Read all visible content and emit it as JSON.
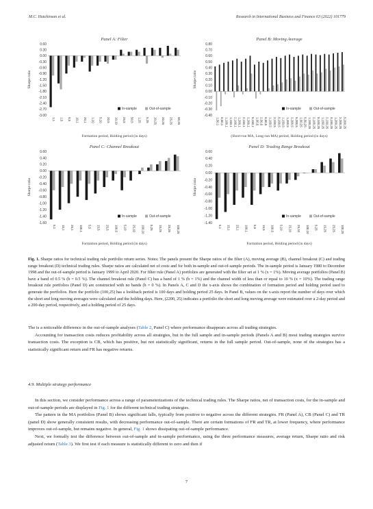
{
  "header": {
    "left": "M.C. Hutchinson et al.",
    "right": "Research in International Business and Finance 63 (2022) 101779"
  },
  "panels": [
    {
      "id": "A",
      "title": "Panel A: Filter",
      "ylabel": "Sharpe ratio",
      "xlabel": "Formation period, Holding period (in days)",
      "legend": [
        "In-sample",
        "Out-of-sample"
      ],
      "yticks": [
        "0.60",
        "0.30",
        "0.00",
        "-0.30",
        "-0.60",
        "-0.90",
        "-1.20",
        "-1.50",
        "-1.80",
        "-2.10",
        "-2.40",
        "-2.70",
        "-3.00"
      ],
      "ylim": [
        -3.0,
        0.6
      ],
      "xticks": [
        "1,1",
        "1,5",
        "5,5",
        "10,1",
        "20,1",
        "1,10",
        "5,10",
        "20,5",
        "10,10",
        "25,5",
        "50,5",
        "1,25",
        "5,25",
        "10,25",
        "20,25",
        "25,25",
        "50,25"
      ]
    },
    {
      "id": "B",
      "title": "Panel B: Moving Average",
      "ylabel": "Sharpe ratio",
      "xlabel": "(Short-run MA, Long-run MA) period, Holding period (in days)",
      "legend": [
        "In-sample",
        "Out-of-sample"
      ],
      "yticks": [
        "0.80",
        "0.70",
        "0.60",
        "0.50",
        "0.40",
        "0.30",
        "0.20",
        "0.10",
        "0.00",
        "-0.10",
        "-0.20",
        "-0.30",
        "-0.40"
      ],
      "ylim": [
        -0.4,
        0.8
      ],
      "xticks": [
        "1,50,1",
        "5,50,1",
        "1,100,1",
        "1,150,1",
        "2,100,1",
        "1,200,1",
        "2,150,1",
        "2,200,1",
        "5,150,1",
        "1,50,5",
        "2,50,5",
        "5,50,5",
        "1,100,5",
        "2,100,5",
        "5,100,5",
        "1,150,5",
        "1,200,5",
        "2,200,5",
        "5,200,5",
        "1,50,25",
        "5,50,25",
        "1,100,25",
        "2,100,25",
        "5,100,25",
        "1,150,25",
        "2,150,25",
        "5,150,25",
        "1,200,25",
        "2,200,25",
        "5,200,25"
      ]
    },
    {
      "id": "C",
      "title": "Panel C: Channel Breakout",
      "ylabel": "Sharpe ratio",
      "xlabel": "Formation period, Holding period (in days)",
      "legend": [
        "In-sample",
        "Out-of-sample"
      ],
      "yticks": [
        "0.60",
        "0.40",
        "0.20",
        "0.00",
        "-0.20",
        "-0.40",
        "-0.60",
        "-0.80",
        "-1.00",
        "-1.20",
        "-1.40",
        "-1.60"
      ],
      "ylim": [
        -1.6,
        0.6
      ],
      "xticks": [
        "5,1",
        "15,1",
        "25,1",
        "100,1",
        "5,5",
        "15,5",
        "25,5",
        "100,5",
        "5,10",
        "25,10",
        "100,10",
        "5,25",
        "15,25",
        "25,25",
        "100,25"
      ]
    },
    {
      "id": "D",
      "title": "Panel D: Trading Range Breakout",
      "ylabel": "Sharpe ratio",
      "xlabel": "Formation period, Holding period (in days)",
      "legend": [
        "In-sample",
        "Out-of-sample"
      ],
      "yticks": [
        "0.60",
        "0.40",
        "0.20",
        "0.00",
        "-0.20",
        "-0.40",
        "-0.60",
        "-0.80",
        "-1.00",
        "-1.20",
        "-1.40"
      ],
      "ylim": [
        -1.4,
        0.6
      ],
      "xticks": [
        "5,1",
        "15,1",
        "25,1",
        "100,1",
        "5,5",
        "15,5",
        "100,5",
        "5,10",
        "15,10",
        "25,10",
        "100,10",
        "5,25",
        "15,25",
        "25,25",
        "100,25"
      ]
    }
  ],
  "chart_data": [
    {
      "type": "bar",
      "title": "Panel A: Filter",
      "xlabel": "Formation period, Holding period (in days)",
      "ylabel": "Sharpe ratio",
      "ylim": [
        -3.0,
        0.6
      ],
      "categories": [
        "1,1",
        "1,5",
        "5,5",
        "10,1",
        "20,1",
        "1,10",
        "5,10",
        "20,5",
        "10,10",
        "25,5",
        "50,5",
        "1,25",
        "5,25",
        "10,25",
        "20,25",
        "25,25",
        "50,25"
      ],
      "series": [
        {
          "name": "In-sample",
          "values": [
            -2.6,
            -1.4,
            -0.9,
            -0.6,
            -0.3,
            -0.8,
            -0.5,
            -0.3,
            -0.2,
            0.3,
            0.2,
            0.3,
            0.4,
            0.4,
            0.4,
            0.5,
            0.4
          ]
        },
        {
          "name": "Out-of-sample",
          "values": [
            -1.0,
            -1.7,
            -0.5,
            -0.3,
            -0.1,
            -0.5,
            -0.3,
            -0.4,
            -0.2,
            0.1,
            0.2,
            0.2,
            -0.4,
            0.3,
            -0.1,
            0.1,
            0.3
          ]
        }
      ],
      "legend": "bottom-right"
    },
    {
      "type": "bar",
      "title": "Panel B: Moving Average",
      "xlabel": "(Short-run MA, Long-run MA) period, Holding period (in days)",
      "ylabel": "Sharpe ratio",
      "ylim": [
        -0.4,
        0.8
      ],
      "categories": [
        "1,50,1",
        "5,50,1",
        "1,100,1",
        "1,150,1",
        "2,100,1",
        "1,200,1",
        "2,150,1",
        "2,200,1",
        "5,150,1",
        "1,50,5",
        "2,50,5",
        "5,50,5",
        "1,100,5",
        "2,100,5",
        "5,100,5",
        "1,150,5",
        "1,200,5",
        "2,200,5",
        "5,200,5",
        "1,50,25",
        "5,50,25",
        "1,100,25",
        "2,100,25",
        "5,100,25",
        "1,150,25",
        "2,150,25",
        "5,150,25",
        "1,200,25",
        "2,200,25",
        "5,200,25"
      ],
      "series": [
        {
          "name": "In-sample",
          "values": [
            0.42,
            0.45,
            0.48,
            0.5,
            0.52,
            0.55,
            0.5,
            0.55,
            0.6,
            0.45,
            0.5,
            0.48,
            0.52,
            0.55,
            0.58,
            0.56,
            0.6,
            0.62,
            0.58,
            0.6,
            0.62,
            0.6,
            0.63,
            0.62,
            0.61,
            0.63,
            0.62,
            0.64,
            0.65,
            0.66
          ]
        },
        {
          "name": "Out-of-sample",
          "values": [
            -0.32,
            -0.25,
            -0.05,
            0.0,
            -0.1,
            0.1,
            -0.05,
            0.05,
            0.3,
            -0.12,
            -0.05,
            0.0,
            0.05,
            0.1,
            0.12,
            0.15,
            0.2,
            0.22,
            0.18,
            0.25,
            0.3,
            0.28,
            0.35,
            0.3,
            0.32,
            0.38,
            0.35,
            0.4,
            0.42,
            0.45
          ]
        }
      ],
      "legend": "bottom-right"
    },
    {
      "type": "bar",
      "title": "Panel C: Channel Breakout",
      "xlabel": "Formation period, Holding period (in days)",
      "ylabel": "Sharpe ratio",
      "ylim": [
        -1.6,
        0.6
      ],
      "categories": [
        "5,1",
        "15,1",
        "25,1",
        "100,1",
        "5,5",
        "15,5",
        "25,5",
        "100,5",
        "5,10",
        "25,10",
        "100,10",
        "5,25",
        "15,25",
        "25,25",
        "100,25"
      ],
      "series": [
        {
          "name": "In-sample",
          "values": [
            -1.5,
            -1.2,
            -1.0,
            -0.8,
            -0.9,
            -0.7,
            -0.5,
            -0.3,
            -0.6,
            -0.3,
            -0.1,
            0.1,
            0.2,
            0.3,
            0.5
          ]
        },
        {
          "name": "Out-of-sample",
          "values": [
            -0.6,
            -0.5,
            -0.4,
            -0.3,
            -0.4,
            -0.3,
            -0.2,
            -0.1,
            -0.2,
            0.0,
            0.1,
            0.2,
            0.3,
            0.4,
            0.45
          ]
        }
      ],
      "legend": "bottom-right"
    },
    {
      "type": "bar",
      "title": "Panel D: Trading Range Breakout",
      "xlabel": "Formation period, Holding period (in days)",
      "ylabel": "Sharpe ratio",
      "ylim": [
        -1.4,
        0.6
      ],
      "categories": [
        "5,1",
        "15,1",
        "25,1",
        "100,1",
        "5,5",
        "15,5",
        "100,5",
        "5,10",
        "15,10",
        "25,10",
        "100,10",
        "5,25",
        "15,25",
        "25,25",
        "100,25"
      ],
      "series": [
        {
          "name": "In-sample",
          "values": [
            -1.3,
            -1.1,
            -0.9,
            -0.7,
            -0.9,
            -0.6,
            -0.4,
            -0.5,
            -0.3,
            -0.2,
            0.0,
            0.1,
            0.3,
            0.4,
            0.55
          ]
        },
        {
          "name": "Out-of-sample",
          "values": [
            -0.7,
            -0.6,
            -0.5,
            -0.4,
            -0.5,
            -0.4,
            -0.3,
            -0.3,
            -0.2,
            -0.1,
            0.0,
            0.1,
            0.2,
            0.3,
            0.4
          ]
        }
      ],
      "legend": "bottom-right"
    }
  ],
  "caption": {
    "label": "Fig. 1.",
    "text": "Sharpe ratios for technical trading rule portfolio return series. Notes: The panels present the Sharpe ratios of the filter (A), moving average (B), channel breakout (C) and trading range breakout (D) technical trading rules. Sharpe ratios are calculated net of costs and for both in-sample and out-of-sample periods. The in-sample period is January 1980 to December 1998 and the out-of-sample period is January 1999 to April 2020. For filter rule (Panel A) portfolios are generated with the filter set at 1 % (x = 1%). Moving average portfolios (Panel B) have a band of 0.5 % (b = 0.5 %). The channel breakout rule (Panel C) has a band of 1 % (b = 1%) and the channel width of less than or equal to 10 % (x = 10%). The trading range breakout rule portfolios (Panel D) are constructed with no bands (b = 0 %). In Panels A, C and D the x-axis shows the combination of formation period and holding period used to generate the portfolios. Here the portfolio (100,25) has a lookback period is 100 days and holding period 25 days. In Panel B, values on the x-axis report the number of days over which the short and long moving averages were calculated and the holding days. Here, (2200, 25) indicates a portfolio the short and long moving average were estimated over a 2-day period and a 200-day period, respectively, and a holding period of 25 days."
  },
  "body1": {
    "p1a": "The is a noticeable difference in the out-of-sample analyses (",
    "p1link": "Table 2",
    "p1b": ", Panel C) where performance disappears across all trading strategies.",
    "p2": "Accounting for transaction costs reduces profitability across all strategies, but in the full sample and in-sample periods (Panels A and B) most trading strategies survive transaction costs. The exception is CB, which has positive, but not statistically significant, returns in the full sample period. Out-of-sample, none of the strategies has a statistically significant return and FR has negative returns."
  },
  "section": {
    "title": "4.9.  Multiple strategy performance"
  },
  "body2": {
    "p1a": "In this section, we consider performance across a range of parameterizations of the technical trading rules. The Sharpe ratios, net of transaction costs, for the in-sample and out-of-sample periods are displayed in ",
    "p1link": "Fig. 1",
    "p1b": " for the different technical trading strategies.",
    "p2a": "The pattern in the MA portfolios (Panel B) shows significant falls, typically from positive to negative across the different strategies. FR (Panel A), CB (Panel C) and TR (panel D) show generally consistent results, with decreasing performance out-of-sample. There are certain formations of FR and TR, at lower frequency, where performance improves out-of-sample, but remains negative. In general, ",
    "p2link": "Fig. 1",
    "p2b": " shows dissipating out-of-sample performance.",
    "p3a": "Next, we formally test the difference between out-of-sample and in-sample performance, using the three performance measures, average return, Sharpe ratio and risk adjusted return (",
    "p3link": "Table 3",
    "p3b": "). We first test if each measure is statistically different to zero and then if"
  },
  "page_number": "7",
  "colors": {
    "in_sample": "#1a1a1a",
    "out_of_sample": "#a8a8a8",
    "link": "#2a6fb5"
  }
}
